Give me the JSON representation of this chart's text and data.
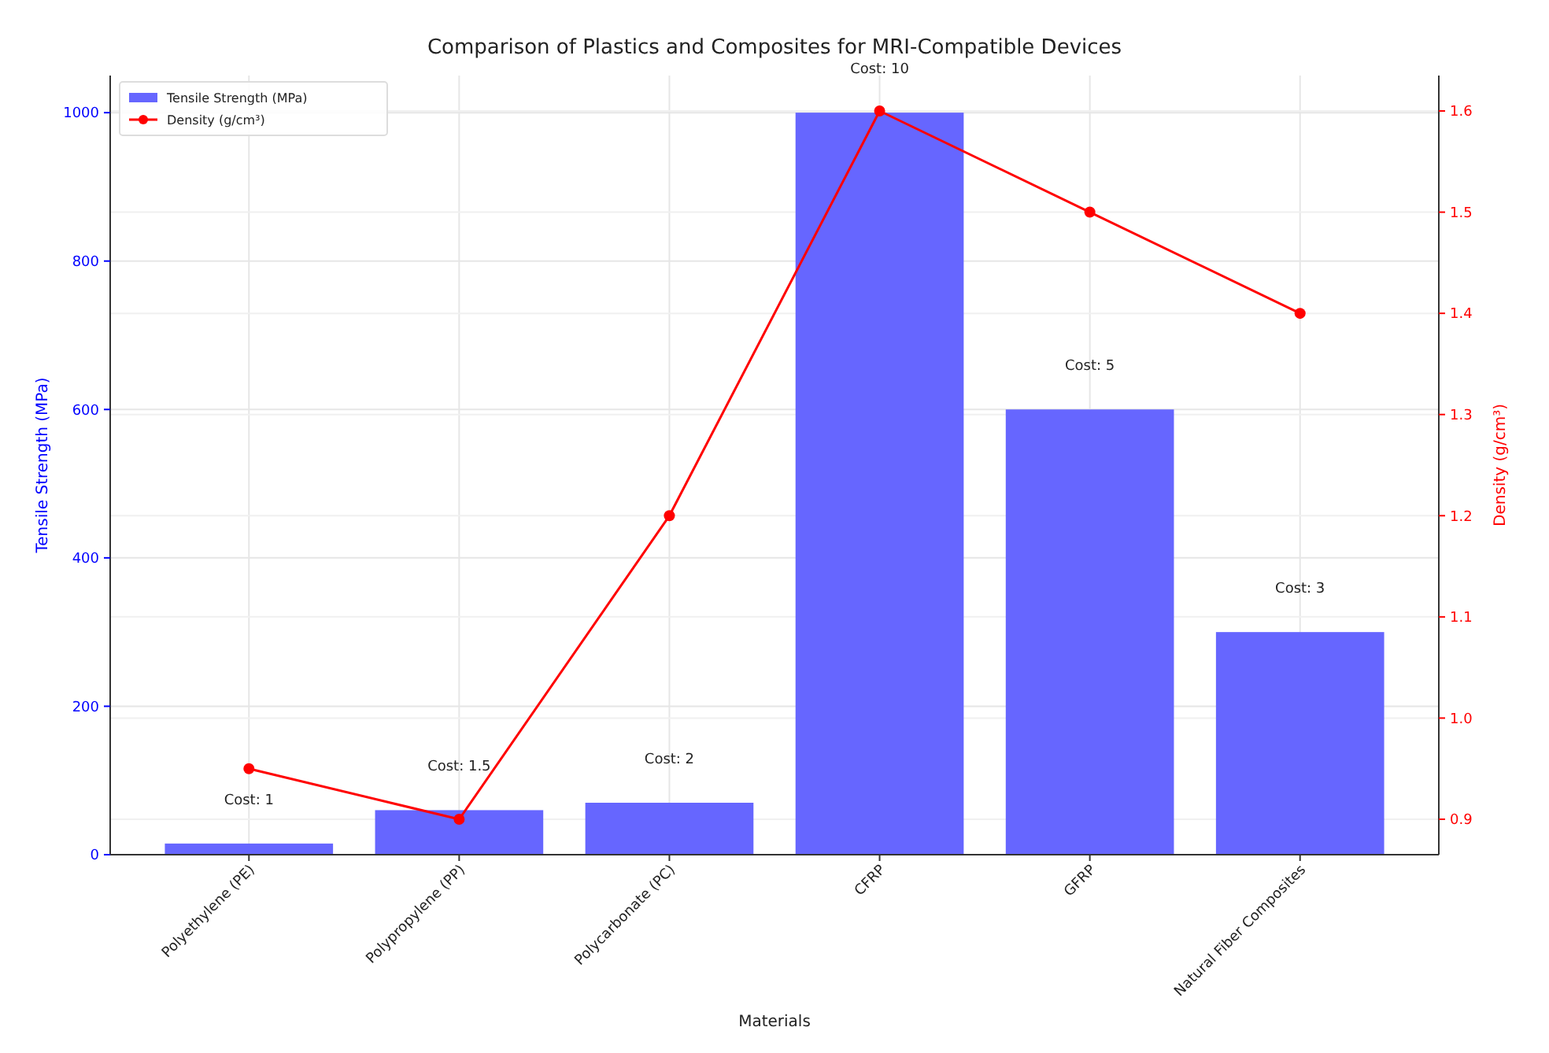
{
  "chart_data": {
    "type": "bar",
    "title": "Comparison of Plastics and Composites for MRI-Compatible Devices",
    "xlabel": "Materials",
    "ylabel": "Tensile Strength (MPa)",
    "y2label": "Density (g/cm³)",
    "categories": [
      "Polyethylene (PE)",
      "Polypropylene (PP)",
      "Polycarbonate (PC)",
      "CFRP",
      "GFRP",
      "Natural Fiber Composites"
    ],
    "series": [
      {
        "name": "Tensile Strength (MPa)",
        "color": "#6666ff",
        "values": [
          15,
          60,
          70,
          1000,
          600,
          300
        ]
      },
      {
        "name": "Density (g/cm³)",
        "type": "line",
        "axis": "y2",
        "color": "#ff0000",
        "marker": "circle",
        "values": [
          0.95,
          0.9,
          1.2,
          1.6,
          1.5,
          1.4
        ]
      }
    ],
    "ylim": [
      0,
      1050
    ],
    "yticks": [
      0,
      200,
      400,
      600,
      800,
      1000
    ],
    "y2lim": [
      0.865,
      1.635
    ],
    "y2ticks": [
      {
        "value": 0.9,
        "label": "0.9"
      },
      {
        "value": 1.0,
        "label": "1.0"
      },
      {
        "value": 1.1,
        "label": "1.1"
      },
      {
        "value": 1.2,
        "label": "1.2"
      },
      {
        "value": 1.3,
        "label": "1.3"
      },
      {
        "value": 1.4,
        "label": "1.4"
      },
      {
        "value": 1.5,
        "label": "1.5"
      },
      {
        "value": 1.6,
        "label": "1.6"
      }
    ],
    "annotations": [
      "Cost: 1",
      "Cost: 1.5",
      "Cost: 2",
      "Cost: 10",
      "Cost: 5",
      "Cost: 3"
    ],
    "grid": true,
    "legend": "top left"
  }
}
